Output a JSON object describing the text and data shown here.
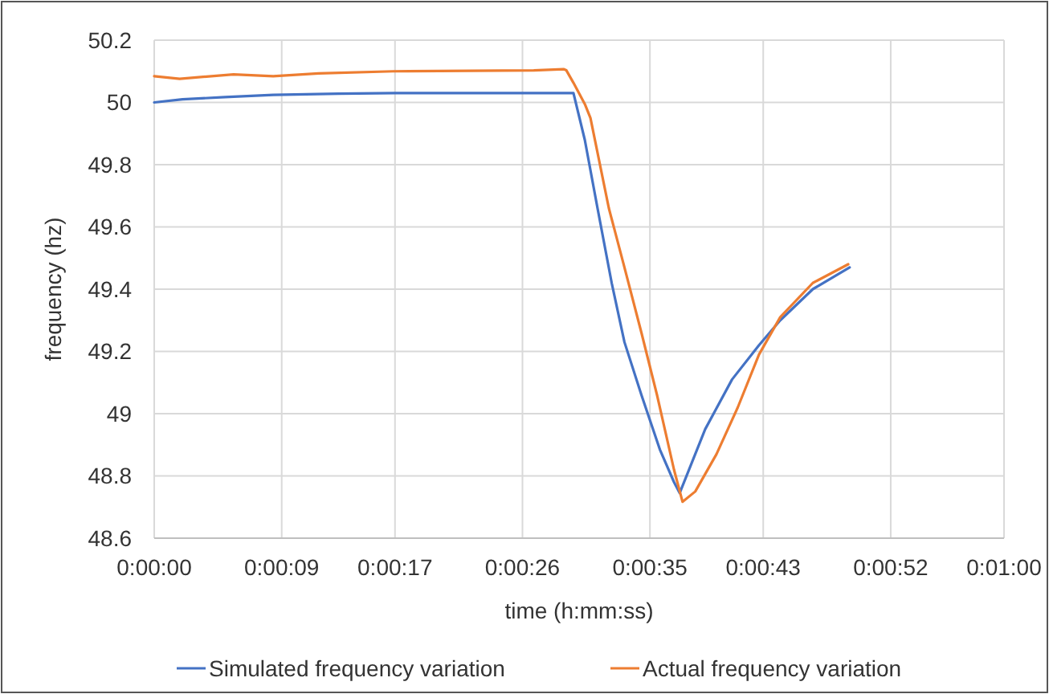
{
  "chart_data": {
    "type": "line",
    "xlabel": "time (h:mm:ss)",
    "ylabel": "frequency (hz)",
    "xlim": [
      0,
      60
    ],
    "xticks": [
      {
        "value": 0,
        "label": "0:00:00"
      },
      {
        "value": 9,
        "label": "0:00:09"
      },
      {
        "value": 17,
        "label": "0:00:17"
      },
      {
        "value": 26,
        "label": "0:00:26"
      },
      {
        "value": 35,
        "label": "0:00:35"
      },
      {
        "value": 43,
        "label": "0:00:43"
      },
      {
        "value": 52,
        "label": "0:00:52"
      },
      {
        "value": 60,
        "label": "0:01:00"
      }
    ],
    "ylim": [
      48.6,
      50.2
    ],
    "yticks": [
      48.6,
      48.8,
      49,
      49.2,
      49.4,
      49.6,
      49.8,
      50,
      50.2
    ],
    "grid": true,
    "legend": "bottom",
    "marker": "none",
    "line_style": "solid",
    "series": [
      {
        "name": "Simulated frequency variation",
        "color": "#4472c4",
        "x": [
          0,
          2,
          5,
          8.4,
          13,
          17,
          29.6,
          30.4,
          31.3,
          32.3,
          33.2,
          34.4,
          35.7,
          36.7,
          37.1,
          38.9,
          40.8,
          42.7,
          44.2,
          46.5,
          49.1
        ],
        "values": [
          50,
          50.01,
          50.017,
          50.024,
          50.028,
          50.03,
          50.03,
          49.88,
          49.66,
          49.42,
          49.23,
          49.06,
          48.885,
          48.78,
          48.745,
          48.95,
          49.11,
          49.22,
          49.3,
          49.4,
          49.47
        ]
      },
      {
        "name": "Actual frequency variation",
        "color": "#ed7d31",
        "x": [
          0,
          1.8,
          5.6,
          8.4,
          11.6,
          16.9,
          26.8,
          28.9,
          29.1,
          29.6,
          30.4,
          30.8,
          32.1,
          33.2,
          34.4,
          35.5,
          36.7,
          37.3,
          38.2,
          39.7,
          41.2,
          42.7,
          44.2,
          46.5,
          49
        ],
        "values": [
          50.084,
          50.076,
          50.09,
          50.084,
          50.093,
          50.1,
          50.103,
          50.107,
          50.103,
          50.063,
          49.995,
          49.95,
          49.66,
          49.47,
          49.26,
          49.06,
          48.82,
          48.717,
          48.75,
          48.87,
          49.02,
          49.19,
          49.31,
          49.42,
          49.48
        ]
      }
    ]
  }
}
